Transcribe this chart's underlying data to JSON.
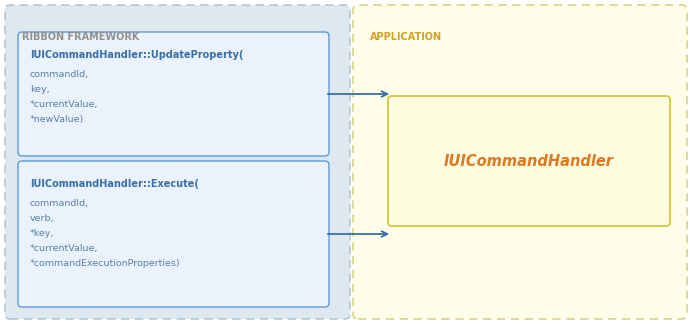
{
  "ribbon_label": "RIBBON FRAMEWORK",
  "app_label": "APPLICATION",
  "box1_title": "IUICommandHandler::UpdateProperty(",
  "box1_lines": [
    "commandId,",
    "key,",
    "*currentValue,",
    "*newValue)"
  ],
  "box2_title": "IUICommandHandler::Execute(",
  "box2_lines": [
    "commandId,",
    "verb,",
    "*key,",
    "*currentValue,",
    "*commandExecutionProperties)"
  ],
  "handler_label": "IUICommandHandler",
  "ribbon_bg": "#dde8f0",
  "ribbon_border": "#a8bfce",
  "app_bg": "#fdfde8",
  "app_border": "#d4c870",
  "box_bg": "#eaf3fb",
  "box_border": "#5b9bd5",
  "handler_bg": "#fffde0",
  "handler_border": "#d4c030",
  "arrow_color": "#3a6ea8",
  "box_title_color": "#3a6ea8",
  "box_text_color": "#5b7fa8",
  "handler_text_color": "#e07820",
  "ribbon_label_color": "#909090",
  "app_label_color": "#d4a020",
  "figsize": [
    6.9,
    3.24
  ],
  "dpi": 100
}
